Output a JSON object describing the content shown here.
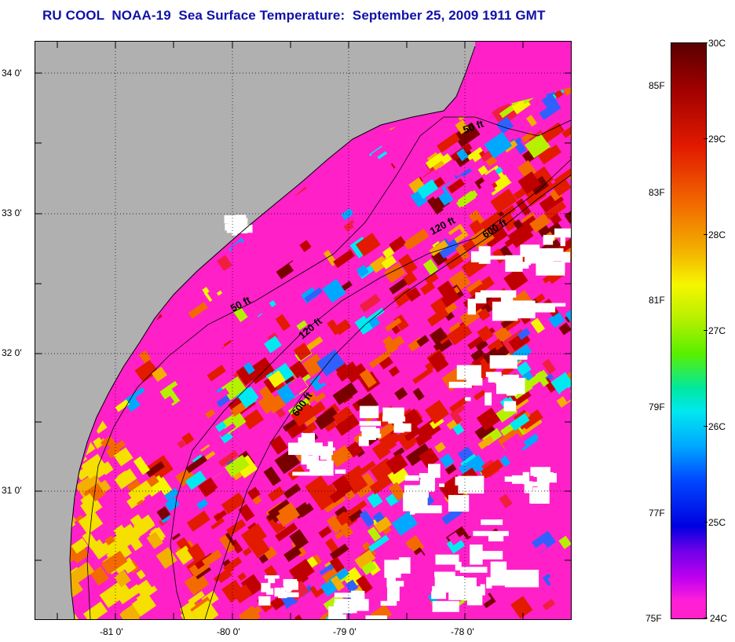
{
  "title": "RU COOL  NOAA-19  Sea Surface Temperature:  September 25, 2009 1911 GMT",
  "map": {
    "lat_labels": [
      "34 0'",
      "33 0'",
      "32 0'",
      "31 0'"
    ],
    "lon_labels": [
      "-81 0'",
      "-80 0'",
      "-79 0'",
      "-78 0'"
    ],
    "contour_labels": [
      "50 ft",
      "120 ft",
      "600 ft",
      "50 ft",
      "120 ft",
      "600 ft"
    ],
    "colors": {
      "land": "#b0b0b0",
      "cloud": "#ffffff",
      "cold_magenta": "#ff20c8"
    }
  },
  "colorbar": {
    "celsius_labels": [
      "30C",
      "29C",
      "28C",
      "27C",
      "26C",
      "25C",
      "24C"
    ],
    "fahrenheit_labels": [
      "85F",
      "83F",
      "81F",
      "79F",
      "77F",
      "75F"
    ],
    "range_c": [
      24,
      30
    ],
    "range_f": [
      75,
      86
    ]
  }
}
